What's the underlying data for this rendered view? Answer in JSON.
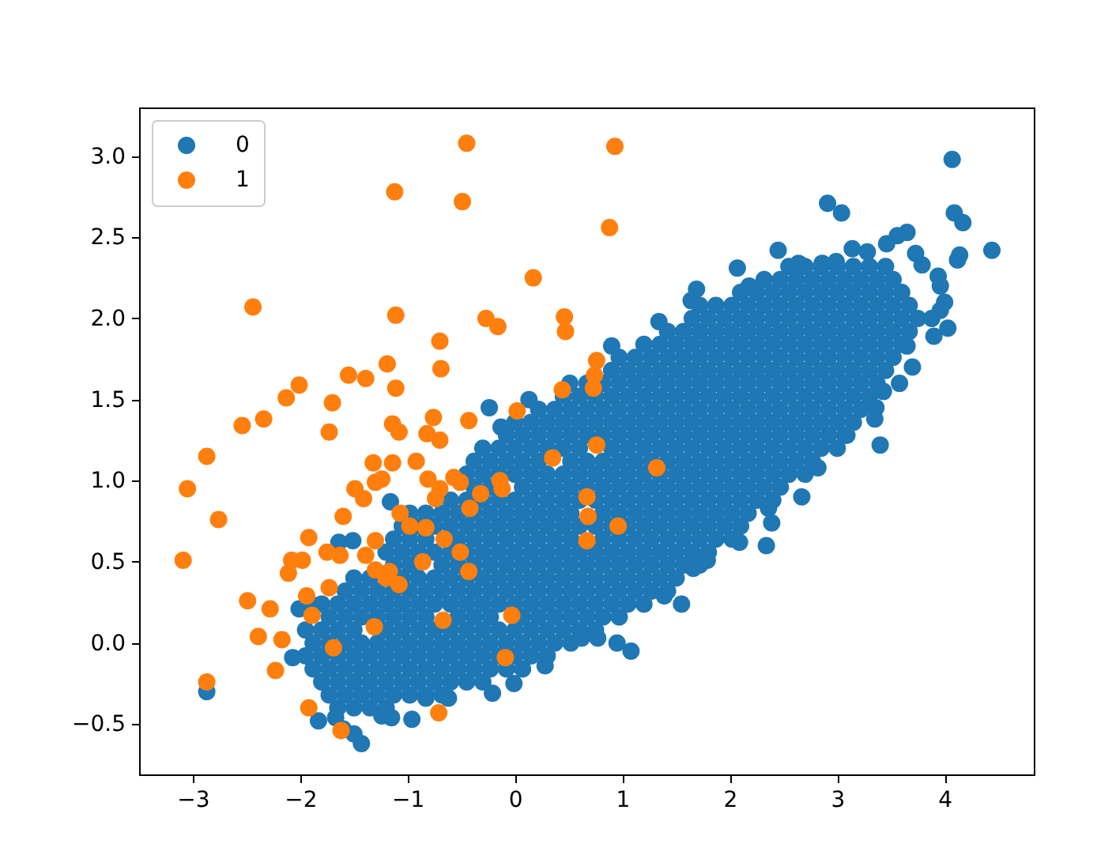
{
  "chart_data": {
    "type": "scatter",
    "xlim": [
      -3.5,
      4.83
    ],
    "ylim": [
      -0.81,
      3.3
    ],
    "xticks": [
      {
        "value": -3,
        "label": "−3"
      },
      {
        "value": -2,
        "label": "−2"
      },
      {
        "value": -1,
        "label": "−1"
      },
      0,
      1,
      2,
      3,
      4
    ],
    "yticks": [
      {
        "value": -0.5,
        "label": "−0.5"
      },
      {
        "value": 0,
        "label": "0.0"
      },
      0.5,
      {
        "value": 1,
        "label": "1.0"
      },
      1.5,
      {
        "value": 2,
        "label": "2.0"
      },
      2.5,
      {
        "value": 3,
        "label": "3.0"
      }
    ],
    "grid": false,
    "legend": "top left",
    "marker": "circle",
    "series": [
      {
        "name": "0",
        "color": "#1f77b4",
        "x": [
          -1.65,
          -1.5,
          -1.35,
          -1.2,
          -1.73,
          -1.58,
          -1.43,
          -1.28,
          -1.13,
          -0.98,
          -0.83,
          -0.68,
          -1.8,
          -1.65,
          -1.5,
          -1.35,
          -1.2,
          -1.05,
          -0.9,
          -0.75,
          -0.6,
          -0.45,
          -0.3,
          -1.88,
          -1.73,
          -1.58,
          -1.43,
          -1.28,
          -1.13,
          -0.98,
          -0.83,
          -0.68,
          -0.53,
          -0.38,
          -0.23,
          -0.08,
          0.07,
          -1.95,
          -1.8,
          -1.65,
          -1.5,
          -1.35,
          -1.2,
          -1.05,
          -0.9,
          -0.75,
          -0.6,
          -0.45,
          -0.3,
          -0.15,
          0,
          0.15,
          0.3,
          -1.88,
          -1.73,
          -1.58,
          -1.43,
          -1.28,
          -1.13,
          -0.98,
          -0.83,
          -0.68,
          -0.53,
          -0.38,
          -0.23,
          -0.08,
          0.07,
          0.22,
          0.37,
          0.52,
          -1.95,
          -1.8,
          -1.65,
          -1.5,
          -1.2,
          -1.05,
          -0.9,
          -0.75,
          -0.6,
          -0.45,
          -0.3,
          -0.15,
          0,
          0.15,
          0.3,
          0.45,
          0.6,
          0.75,
          -1.73,
          -1.58,
          -1.43,
          -1.28,
          -1.13,
          -0.98,
          -0.83,
          -0.53,
          -0.38,
          -0.23,
          0.07,
          0.22,
          0.37,
          0.52,
          0.67,
          0.82,
          0.97,
          -1.8,
          -1.65,
          -1.5,
          -1.35,
          -1.2,
          -1.05,
          -0.9,
          -0.75,
          -0.6,
          -0.45,
          -0.3,
          -0.15,
          0,
          0.15,
          0.3,
          0.45,
          0.6,
          0.75,
          0.9,
          1.05,
          1.2,
          -1.58,
          -1.43,
          -1.28,
          -1.13,
          -0.98,
          -0.83,
          -0.68,
          -0.53,
          -0.38,
          -0.23,
          -0.08,
          0.07,
          0.22,
          0.37,
          0.52,
          0.67,
          0.82,
          0.97,
          1.12,
          1.27,
          1.42,
          -1.5,
          -1.35,
          -1.05,
          -0.9,
          -0.75,
          -0.6,
          -0.45,
          -0.3,
          -0.15,
          0,
          0.15,
          0.3,
          0.45,
          0.6,
          0.75,
          0.9,
          1.05,
          1.2,
          1.35,
          1.5,
          -1.13,
          -0.98,
          -0.68,
          -0.53,
          -0.38,
          -0.23,
          -0.08,
          0.07,
          0.22,
          0.37,
          0.52,
          0.67,
          0.82,
          0.97,
          1.12,
          1.27,
          1.42,
          1.57,
          1.72,
          -1.2,
          -1.05,
          -0.9,
          -0.75,
          -0.6,
          -0.45,
          -0.3,
          -0.15,
          0,
          0.15,
          0.3,
          0.45,
          0.6,
          0.75,
          0.9,
          1.05,
          1.2,
          1.35,
          1.5,
          1.65,
          1.8,
          -1.13,
          -0.98,
          -0.83,
          -0.53,
          -0.38,
          -0.23,
          -0.08,
          0.07,
          0.22,
          0.37,
          0.52,
          0.82,
          0.97,
          1.12,
          1.27,
          1.42,
          1.57,
          1.72,
          1.87,
          2.02,
          -1.05,
          -0.9,
          -0.75,
          -0.6,
          -0.45,
          -0.3,
          -0.15,
          0,
          0.15,
          0.3,
          0.45,
          0.6,
          0.75,
          0.9,
          1.05,
          1.2,
          1.35,
          1.5,
          1.65,
          1.8,
          1.95,
          2.1,
          -0.98,
          -0.83,
          -0.68,
          -0.53,
          -0.38,
          -0.23,
          -0.08,
          0.07,
          0.22,
          0.37,
          0.52,
          0.82,
          0.97,
          1.12,
          1.27,
          1.42,
          1.57,
          1.72,
          1.87,
          2.02,
          2.17,
          -0.6,
          -0.45,
          -0.3,
          -0.15,
          0,
          0.15,
          0.3,
          0.45,
          0.6,
          0.75,
          0.9,
          1.05,
          1.2,
          1.35,
          1.5,
          1.65,
          1.8,
          1.95,
          2.1,
          2.25,
          2.4,
          -0.38,
          -0.23,
          0.07,
          0.22,
          0.37,
          0.52,
          0.67,
          0.82,
          0.97,
          1.12,
          1.27,
          1.42,
          1.57,
          1.72,
          1.87,
          2.02,
          2.17,
          2.32,
          2.47,
          -0.45,
          -0.3,
          -0.15,
          0,
          0.15,
          0.3,
          0.45,
          0.6,
          0.75,
          0.9,
          1.05,
          1.2,
          1.35,
          1.5,
          1.65,
          1.8,
          1.95,
          2.1,
          2.25,
          2.4,
          2.55,
          2.7,
          -0.38,
          -0.23,
          -0.08,
          0.07,
          0.22,
          0.52,
          0.67,
          0.82,
          0.97,
          1.12,
          1.27,
          1.42,
          1.57,
          1.72,
          1.87,
          2.02,
          2.17,
          2.32,
          2.47,
          2.62,
          2.77,
          -0.3,
          -0.15,
          0,
          0.15,
          0.3,
          0.45,
          0.6,
          0.9,
          1.05,
          1.2,
          1.35,
          1.5,
          1.65,
          1.8,
          1.95,
          2.1,
          2.25,
          2.4,
          2.55,
          2.7,
          2.85,
          3,
          -0.08,
          0.07,
          0.22,
          0.37,
          0.52,
          0.67,
          0.82,
          0.97,
          1.12,
          1.27,
          1.42,
          1.57,
          1.72,
          1.87,
          2.02,
          2.17,
          2.32,
          2.47,
          2.62,
          2.77,
          2.92,
          3.07,
          0,
          0.15,
          0.3,
          0.45,
          0.6,
          0.75,
          0.9,
          1.05,
          1.2,
          1.35,
          1.5,
          1.65,
          1.8,
          1.95,
          2.1,
          2.25,
          2.4,
          2.55,
          2.7,
          2.85,
          3,
          3.15,
          0.22,
          0.37,
          0.52,
          0.67,
          0.82,
          0.97,
          1.12,
          1.27,
          1.42,
          1.57,
          1.72,
          1.87,
          2.02,
          2.17,
          2.32,
          2.47,
          2.62,
          2.77,
          2.92,
          3.07,
          3.22,
          0.45,
          0.6,
          0.75,
          0.9,
          1.05,
          1.2,
          1.35,
          1.5,
          1.65,
          1.8,
          1.95,
          2.1,
          2.25,
          2.4,
          2.55,
          2.7,
          2.85,
          3,
          3.15,
          3.3,
          0.67,
          0.82,
          0.97,
          1.12,
          1.27,
          1.42,
          1.57,
          1.72,
          1.87,
          2.02,
          2.17,
          2.32,
          2.47,
          2.62,
          2.77,
          2.92,
          3.07,
          3.22,
          3.37,
          0.9,
          1.05,
          1.2,
          1.35,
          1.5,
          1.65,
          1.8,
          1.95,
          2.1,
          2.25,
          2.4,
          2.55,
          2.7,
          2.85,
          3,
          3.15,
          3.3,
          3.45,
          0.97,
          1.12,
          1.27,
          1.42,
          1.57,
          1.72,
          1.87,
          2.02,
          2.17,
          2.32,
          2.47,
          2.62,
          2.77,
          2.92,
          3.07,
          3.22,
          3.37,
          3.52,
          1.2,
          1.35,
          1.5,
          1.65,
          1.8,
          1.95,
          2.1,
          2.25,
          2.4,
          2.55,
          2.7,
          2.85,
          3,
          3.15,
          3.3,
          3.45,
          3.6,
          1.42,
          1.57,
          1.72,
          1.87,
          2.02,
          2.17,
          2.32,
          2.47,
          2.62,
          2.77,
          2.92,
          3.07,
          3.22,
          3.37,
          3.52,
          3.67,
          1.65,
          1.8,
          1.95,
          2.1,
          2.25,
          2.4,
          2.55,
          2.7,
          2.85,
          3,
          3.15,
          3.3,
          3.45,
          3.6,
          3.75,
          1.72,
          1.87,
          2.02,
          2.17,
          2.32,
          2.47,
          2.62,
          2.77,
          2.92,
          3.07,
          3.22,
          3.37,
          3.52,
          3.67,
          2.1,
          2.25,
          2.4,
          2.55,
          2.7,
          2.85,
          3,
          3.15,
          3.3,
          3.45,
          3.6,
          2.32,
          2.47,
          2.62,
          2.77,
          2.92,
          3.07,
          3.22,
          3.37,
          3.52,
          2.55,
          2.7,
          2.85,
          3,
          3.15,
          3.3,
          3.45,
          4.07,
          2.91,
          3.04,
          4.09,
          4.17,
          4.44,
          4.12,
          4.14,
          2.45,
          3.65,
          3.56,
          3.73,
          3.79,
          3.94,
          3.96,
          4.0,
          3.96,
          4.03,
          3.9,
          3.88,
          3.7,
          3.65,
          3.58,
          3.43,
          3.36,
          3.35,
          3.4,
          3.09,
          2.07,
          1.64,
          1.69,
          1.34,
          0.9,
          2.64,
          2.86,
          3.14,
          3.28,
          3.46,
          2.99,
          2.18,
          0.51,
          0.13,
          -0.24,
          -0.13,
          2.82,
          2.67,
          2.39,
          2.36,
          2.34,
          2.09,
          1.79,
          1.66,
          1.55,
          1.39,
          1.08,
          0.95,
          0.77,
          0.62,
          0.28,
          -0.01,
          -0.21,
          -0.62,
          -0.83,
          -0.96,
          -1.15,
          -1.24,
          -1.43,
          -1.5,
          -1.6,
          -1.67,
          -1.83,
          -2.07,
          -2.87,
          -2.01,
          -1.86,
          -1.64,
          -1.51,
          -1.16
        ],
        "values": [
          -0.4,
          -0.4,
          -0.4,
          -0.4,
          -0.32,
          -0.32,
          -0.32,
          -0.32,
          -0.32,
          -0.32,
          -0.32,
          -0.32,
          -0.24,
          -0.24,
          -0.24,
          -0.24,
          -0.24,
          -0.24,
          -0.24,
          -0.24,
          -0.24,
          -0.24,
          -0.24,
          -0.16,
          -0.16,
          -0.16,
          -0.16,
          -0.16,
          -0.16,
          -0.16,
          -0.16,
          -0.16,
          -0.16,
          -0.16,
          -0.16,
          -0.16,
          -0.16,
          -0.08,
          -0.08,
          -0.08,
          -0.08,
          -0.08,
          -0.08,
          -0.08,
          -0.08,
          -0.08,
          -0.08,
          -0.08,
          -0.08,
          -0.08,
          -0.08,
          -0.08,
          -0.08,
          0,
          0,
          0,
          0,
          0,
          0,
          0,
          0,
          0,
          0,
          0,
          0,
          0,
          0,
          0,
          0,
          0,
          0.08,
          0.08,
          0.08,
          0.08,
          0.08,
          0.08,
          0.08,
          0.08,
          0.08,
          0.08,
          0.08,
          0.08,
          0.08,
          0.08,
          0.08,
          0.08,
          0.08,
          0.08,
          0.16,
          0.16,
          0.16,
          0.16,
          0.16,
          0.16,
          0.16,
          0.16,
          0.16,
          0.16,
          0.16,
          0.16,
          0.16,
          0.16,
          0.16,
          0.16,
          0.16,
          0.24,
          0.24,
          0.24,
          0.24,
          0.24,
          0.24,
          0.24,
          0.24,
          0.24,
          0.24,
          0.24,
          0.24,
          0.24,
          0.24,
          0.24,
          0.24,
          0.24,
          0.24,
          0.24,
          0.24,
          0.24,
          0.32,
          0.32,
          0.32,
          0.32,
          0.32,
          0.32,
          0.32,
          0.32,
          0.32,
          0.32,
          0.32,
          0.32,
          0.32,
          0.32,
          0.32,
          0.32,
          0.32,
          0.32,
          0.32,
          0.32,
          0.32,
          0.4,
          0.4,
          0.4,
          0.4,
          0.4,
          0.4,
          0.4,
          0.4,
          0.4,
          0.4,
          0.4,
          0.4,
          0.4,
          0.4,
          0.4,
          0.4,
          0.4,
          0.4,
          0.4,
          0.4,
          0.48,
          0.48,
          0.48,
          0.48,
          0.48,
          0.48,
          0.48,
          0.48,
          0.48,
          0.48,
          0.48,
          0.48,
          0.48,
          0.48,
          0.48,
          0.48,
          0.48,
          0.48,
          0.48,
          0.56,
          0.56,
          0.56,
          0.56,
          0.56,
          0.56,
          0.56,
          0.56,
          0.56,
          0.56,
          0.56,
          0.56,
          0.56,
          0.56,
          0.56,
          0.56,
          0.56,
          0.56,
          0.56,
          0.56,
          0.56,
          0.64,
          0.64,
          0.64,
          0.64,
          0.64,
          0.64,
          0.64,
          0.64,
          0.64,
          0.64,
          0.64,
          0.64,
          0.64,
          0.64,
          0.64,
          0.64,
          0.64,
          0.64,
          0.64,
          0.64,
          0.72,
          0.72,
          0.72,
          0.72,
          0.72,
          0.72,
          0.72,
          0.72,
          0.72,
          0.72,
          0.72,
          0.72,
          0.72,
          0.72,
          0.72,
          0.72,
          0.72,
          0.72,
          0.72,
          0.72,
          0.72,
          0.72,
          0.8,
          0.8,
          0.8,
          0.8,
          0.8,
          0.8,
          0.8,
          0.8,
          0.8,
          0.8,
          0.8,
          0.8,
          0.8,
          0.8,
          0.8,
          0.8,
          0.8,
          0.8,
          0.8,
          0.8,
          0.8,
          0.88,
          0.88,
          0.88,
          0.88,
          0.88,
          0.88,
          0.88,
          0.88,
          0.88,
          0.88,
          0.88,
          0.88,
          0.88,
          0.88,
          0.88,
          0.88,
          0.88,
          0.88,
          0.88,
          0.88,
          0.88,
          0.96,
          0.96,
          0.96,
          0.96,
          0.96,
          0.96,
          0.96,
          0.96,
          0.96,
          0.96,
          0.96,
          0.96,
          0.96,
          0.96,
          0.96,
          0.96,
          0.96,
          0.96,
          0.96,
          1.04,
          1.04,
          1.04,
          1.04,
          1.04,
          1.04,
          1.04,
          1.04,
          1.04,
          1.04,
          1.04,
          1.04,
          1.04,
          1.04,
          1.04,
          1.04,
          1.04,
          1.04,
          1.04,
          1.04,
          1.04,
          1.04,
          1.12,
          1.12,
          1.12,
          1.12,
          1.12,
          1.12,
          1.12,
          1.12,
          1.12,
          1.12,
          1.12,
          1.12,
          1.12,
          1.12,
          1.12,
          1.12,
          1.12,
          1.12,
          1.12,
          1.12,
          1.12,
          1.2,
          1.2,
          1.2,
          1.2,
          1.2,
          1.2,
          1.2,
          1.2,
          1.2,
          1.2,
          1.2,
          1.2,
          1.2,
          1.2,
          1.2,
          1.2,
          1.2,
          1.2,
          1.2,
          1.2,
          1.2,
          1.2,
          1.28,
          1.28,
          1.28,
          1.28,
          1.28,
          1.28,
          1.28,
          1.28,
          1.28,
          1.28,
          1.28,
          1.28,
          1.28,
          1.28,
          1.28,
          1.28,
          1.28,
          1.28,
          1.28,
          1.28,
          1.28,
          1.28,
          1.36,
          1.36,
          1.36,
          1.36,
          1.36,
          1.36,
          1.36,
          1.36,
          1.36,
          1.36,
          1.36,
          1.36,
          1.36,
          1.36,
          1.36,
          1.36,
          1.36,
          1.36,
          1.36,
          1.36,
          1.36,
          1.36,
          1.44,
          1.44,
          1.44,
          1.44,
          1.44,
          1.44,
          1.44,
          1.44,
          1.44,
          1.44,
          1.44,
          1.44,
          1.44,
          1.44,
          1.44,
          1.44,
          1.44,
          1.44,
          1.44,
          1.44,
          1.44,
          1.52,
          1.52,
          1.52,
          1.52,
          1.52,
          1.52,
          1.52,
          1.52,
          1.52,
          1.52,
          1.52,
          1.52,
          1.52,
          1.52,
          1.52,
          1.52,
          1.52,
          1.52,
          1.52,
          1.52,
          1.6,
          1.6,
          1.6,
          1.6,
          1.6,
          1.6,
          1.6,
          1.6,
          1.6,
          1.6,
          1.6,
          1.6,
          1.6,
          1.6,
          1.6,
          1.6,
          1.6,
          1.6,
          1.6,
          1.68,
          1.68,
          1.68,
          1.68,
          1.68,
          1.68,
          1.68,
          1.68,
          1.68,
          1.68,
          1.68,
          1.68,
          1.68,
          1.68,
          1.68,
          1.68,
          1.68,
          1.68,
          1.76,
          1.76,
          1.76,
          1.76,
          1.76,
          1.76,
          1.76,
          1.76,
          1.76,
          1.76,
          1.76,
          1.76,
          1.76,
          1.76,
          1.76,
          1.76,
          1.76,
          1.76,
          1.84,
          1.84,
          1.84,
          1.84,
          1.84,
          1.84,
          1.84,
          1.84,
          1.84,
          1.84,
          1.84,
          1.84,
          1.84,
          1.84,
          1.84,
          1.84,
          1.84,
          1.92,
          1.92,
          1.92,
          1.92,
          1.92,
          1.92,
          1.92,
          1.92,
          1.92,
          1.92,
          1.92,
          1.92,
          1.92,
          1.92,
          1.92,
          1.92,
          2,
          2,
          2,
          2,
          2,
          2,
          2,
          2,
          2,
          2,
          2,
          2,
          2,
          2,
          2,
          2.08,
          2.08,
          2.08,
          2.08,
          2.08,
          2.08,
          2.08,
          2.08,
          2.08,
          2.08,
          2.08,
          2.08,
          2.08,
          2.08,
          2.16,
          2.16,
          2.16,
          2.16,
          2.16,
          2.16,
          2.16,
          2.16,
          2.16,
          2.16,
          2.16,
          2.24,
          2.24,
          2.24,
          2.24,
          2.24,
          2.24,
          2.24,
          2.24,
          2.24,
          2.32,
          2.32,
          2.32,
          2.32,
          2.32,
          2.32,
          2.32,
          2.98,
          2.71,
          2.65,
          2.65,
          2.59,
          2.42,
          2.36,
          2.39,
          2.42,
          2.53,
          2.51,
          2.4,
          2.33,
          2.26,
          2.2,
          2.1,
          2.05,
          1.94,
          1.89,
          2.0,
          1.7,
          1.83,
          1.6,
          1.55,
          1.45,
          1.38,
          1.22,
          1.28,
          2.31,
          2.11,
          2.18,
          1.98,
          1.83,
          2.34,
          2.34,
          2.43,
          2.41,
          2.46,
          2.35,
          2.2,
          1.6,
          1.5,
          1.45,
          1.33,
          1.08,
          0.9,
          0.74,
          0.83,
          0.6,
          0.62,
          0.51,
          0.46,
          0.24,
          0.29,
          -0.05,
          0,
          0.03,
          0.03,
          -0.14,
          -0.25,
          -0.31,
          -0.34,
          -0.34,
          -0.47,
          -0.46,
          -0.45,
          -0.62,
          -0.56,
          -0.53,
          -0.46,
          -0.48,
          -0.09,
          -0.3,
          0.21,
          0.23,
          0.62,
          0.63,
          0.87
        ]
      },
      {
        "name": "1",
        "color": "#ff7f0e",
        "x": [
          -0.45,
          0.93,
          -1.12,
          -0.49,
          0.88,
          0.17,
          -2.44,
          -1.11,
          -0.27,
          -0.16,
          0.46,
          0.47,
          -0.7,
          -1.19,
          -0.69,
          -1.55,
          -1.39,
          -2.01,
          -2.13,
          -1.11,
          -1.7,
          -2.54,
          -2.34,
          -1.73,
          -2.87,
          -1.14,
          -1.08,
          -0.76,
          -0.82,
          -0.7,
          -0.43,
          0.02,
          0.44,
          0.73,
          0.74,
          0.76,
          0.76,
          0.35,
          1.32,
          -3.05,
          -2.76,
          -3.09,
          -1.32,
          -1.14,
          -0.92,
          -0.81,
          -0.57,
          -0.51,
          -0.14,
          -0.12,
          -1.49,
          -1.41,
          -1.3,
          -1.24,
          -0.74,
          -0.7,
          -0.32,
          -0.42,
          -1.6,
          -1.07,
          -0.98,
          -0.83,
          -0.66,
          -0.51,
          -0.86,
          -0.43,
          0.67,
          0.68,
          0.67,
          0.96,
          -1.92,
          -1.3,
          -1.75,
          -1.63,
          -2.08,
          -1.98,
          -1.39,
          -2.11,
          -1.3,
          -1.2,
          -1.17,
          -1.08,
          -1.73,
          -1.94,
          -2.49,
          -2.28,
          -1.89,
          -0.67,
          -0.03,
          -1.31,
          -2.39,
          -2.17,
          -1.69,
          -2.23,
          -0.09,
          -2.87,
          -1.92,
          -0.71,
          -1.62
        ],
        "values": [
          3.08,
          3.06,
          2.78,
          2.72,
          2.56,
          2.25,
          2.07,
          2.02,
          2.0,
          1.95,
          2.01,
          1.92,
          1.86,
          1.72,
          1.69,
          1.65,
          1.63,
          1.59,
          1.51,
          1.57,
          1.48,
          1.34,
          1.38,
          1.3,
          1.15,
          1.35,
          1.3,
          1.39,
          1.29,
          1.25,
          1.37,
          1.43,
          1.56,
          1.57,
          1.65,
          1.74,
          1.22,
          1.14,
          1.08,
          0.95,
          0.76,
          0.51,
          1.11,
          1.11,
          1.12,
          1.01,
          1.02,
          0.99,
          1.0,
          0.95,
          0.95,
          0.89,
          0.99,
          1.01,
          0.89,
          0.95,
          0.92,
          0.83,
          0.78,
          0.8,
          0.72,
          0.71,
          0.64,
          0.56,
          0.5,
          0.44,
          0.9,
          0.78,
          0.63,
          0.72,
          0.65,
          0.63,
          0.56,
          0.54,
          0.51,
          0.51,
          0.54,
          0.43,
          0.45,
          0.4,
          0.44,
          0.36,
          0.34,
          0.29,
          0.26,
          0.21,
          0.17,
          0.14,
          0.17,
          0.1,
          0.04,
          0.02,
          -0.03,
          -0.17,
          -0.09,
          -0.24,
          -0.4,
          -0.43,
          -0.54
        ]
      }
    ]
  }
}
